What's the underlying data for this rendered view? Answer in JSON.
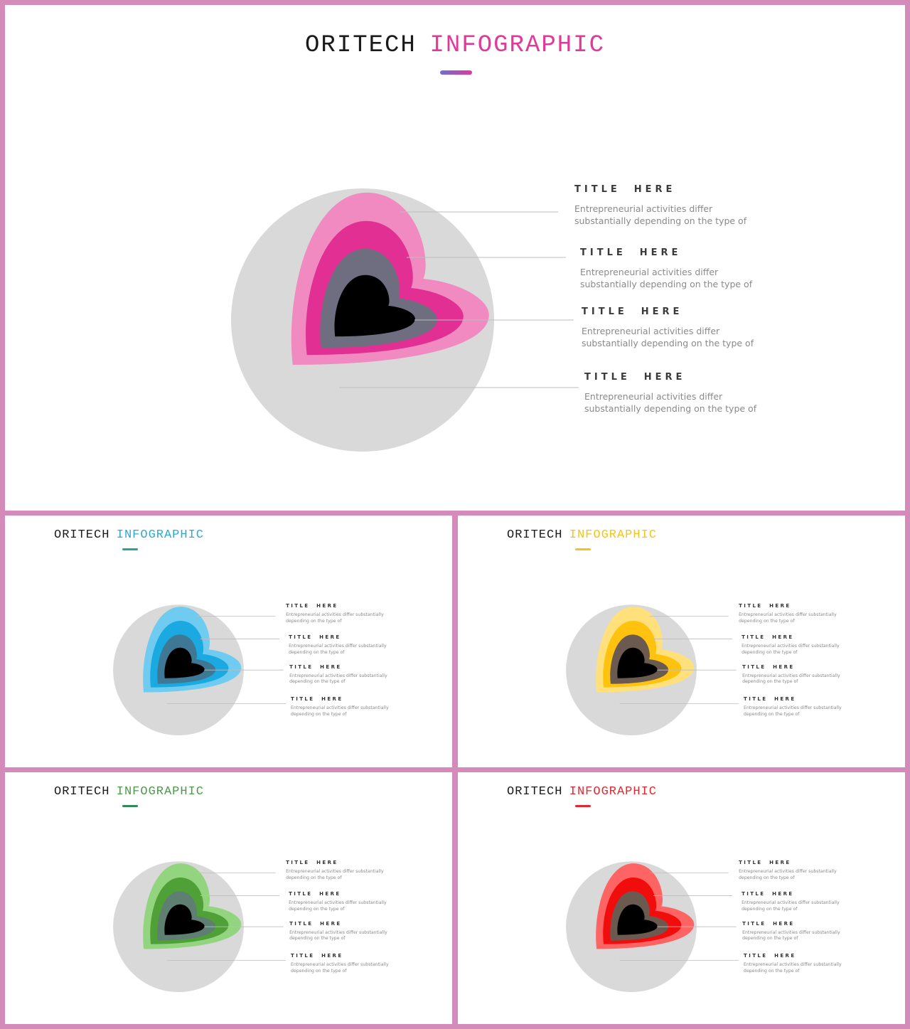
{
  "slides": [
    {
      "title_a": "ORITECH",
      "title_b": "INFOGRAPHIC",
      "accent": "#E0399A",
      "underline": [
        "#6C6FD6",
        "#E0399A"
      ],
      "layers": [
        "#F08AC0",
        "#E12F93",
        "#6E6E80",
        "#000000"
      ],
      "items": [
        {
          "title": "TITLE  HERE",
          "text": "Entrepreneurial activities differ substantially depending on the type of"
        },
        {
          "title": "TITLE  HERE",
          "text": "Entrepreneurial activities differ substantially depending on the type of"
        },
        {
          "title": "TITLE  HERE",
          "text": "Entrepreneurial activities differ substantially depending on the type of"
        },
        {
          "title": "TITLE  HERE",
          "text": "Entrepreneurial activities differ substantially depending on the type of"
        }
      ]
    },
    {
      "title_a": "ORITECH",
      "title_b": "INFOGRAPHIC",
      "accent": "#2EA8D6",
      "underline": [
        "#25A59A",
        "#25A59A"
      ],
      "layers": [
        "#6FCBEF",
        "#1BA9E2",
        "#3E7895",
        "#000000"
      ],
      "items": [
        {
          "title": "TITLE  HERE",
          "text": "Entrepreneurial activities differ substantially depending on the type of"
        },
        {
          "title": "TITLE  HERE",
          "text": "Entrepreneurial activities differ substantially depending on the type of"
        },
        {
          "title": "TITLE  HERE",
          "text": "Entrepreneurial activities differ substantially depending on the type of"
        },
        {
          "title": "TITLE  HERE",
          "text": "Entrepreneurial activities differ substantially depending on the type of"
        }
      ]
    },
    {
      "title_a": "ORITECH",
      "title_b": "INFOGRAPHIC",
      "accent": "#F2C51C",
      "underline": [
        "#F2C51C",
        "#F2C51C"
      ],
      "layers": [
        "#FFE07A",
        "#FFC30F",
        "#6B5A50",
        "#000000"
      ],
      "items": [
        {
          "title": "TITLE  HERE",
          "text": "Entrepreneurial activities differ substantially depending on the type of"
        },
        {
          "title": "TITLE  HERE",
          "text": "Entrepreneurial activities differ substantially depending on the type of"
        },
        {
          "title": "TITLE  HERE",
          "text": "Entrepreneurial activities differ substantially depending on the type of"
        },
        {
          "title": "TITLE  HERE",
          "text": "Entrepreneurial activities differ substantially depending on the type of"
        }
      ]
    },
    {
      "title_a": "ORITECH",
      "title_b": "INFOGRAPHIC",
      "accent": "#4E9A4A",
      "underline": [
        "#2E8B57",
        "#2E8B57"
      ],
      "layers": [
        "#93D47E",
        "#4FA037",
        "#5E7F72",
        "#000000"
      ],
      "items": [
        {
          "title": "TITLE  HERE",
          "text": "Entrepreneurial activities differ substantially depending on the type of"
        },
        {
          "title": "TITLE  HERE",
          "text": "Entrepreneurial activities differ substantially depending on the type of"
        },
        {
          "title": "TITLE  HERE",
          "text": "Entrepreneurial activities differ substantially depending on the type of"
        },
        {
          "title": "TITLE  HERE",
          "text": "Entrepreneurial activities differ substantially depending on the type of"
        }
      ]
    },
    {
      "title_a": "ORITECH",
      "title_b": "INFOGRAPHIC",
      "accent": "#E0282E",
      "underline": [
        "#E0282E",
        "#E0282E"
      ],
      "layers": [
        "#FF6464",
        "#F20D0D",
        "#6B5A50",
        "#000000"
      ],
      "items": [
        {
          "title": "TITLE  HERE",
          "text": "Entrepreneurial activities differ substantially depending on the type of"
        },
        {
          "title": "TITLE  HERE",
          "text": "Entrepreneurial activities differ substantially depending on the type of"
        },
        {
          "title": "TITLE  HERE",
          "text": "Entrepreneurial activities differ substantially depending on the type of"
        },
        {
          "title": "TITLE  HERE",
          "text": "Entrepreneurial activities differ substantially depending on the type of"
        }
      ]
    }
  ]
}
